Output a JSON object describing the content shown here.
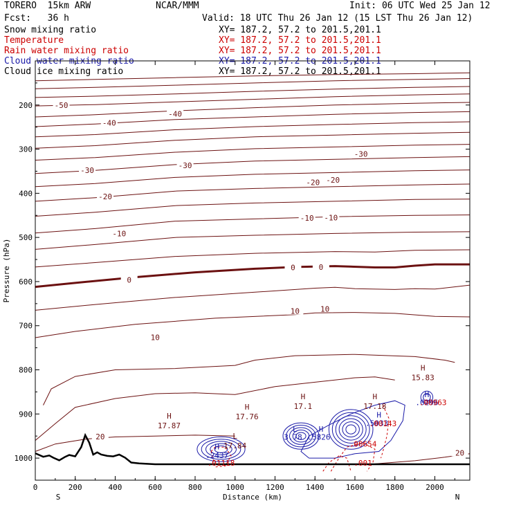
{
  "header": {
    "model": "TORERO  15km ARW",
    "center": "NCAR/MMM",
    "init": "Init: 06 UTC Wed 25 Jan 12",
    "fcst": "Fcst:   36 h",
    "valid": "Valid: 18 UTC Thu 26 Jan 12 (15 LST Thu 26 Jan 12)"
  },
  "fields": [
    {
      "name": "Snow mixing ratio",
      "xy": "XY= 187.2, 57.2 to 201.5,201.1",
      "color": "#000000"
    },
    {
      "name": "Temperature",
      "xy": "XY= 187.2, 57.2 to 201.5,201.1",
      "color": "#cc0000"
    },
    {
      "name": "Rain water mixing ratio",
      "xy": "XY= 187.2, 57.2 to 201.5,201.1",
      "color": "#cc0000"
    },
    {
      "name": "Cloud water mixing ratio",
      "xy": "XY= 187.2, 57.2 to 201.5,201.1",
      "color": "#1a1aa8"
    },
    {
      "name": "Cloud ice mixing ratio",
      "xy": "XY= 187.2, 57.2 to 201.5,201.1",
      "color": "#000000"
    }
  ],
  "colors": {
    "temp": "#6b1010",
    "rain": "#cc0000",
    "cloud": "#1a1aa8",
    "terrain": "#000000",
    "max_label": "#6b1010"
  },
  "chart_data": {
    "type": "cross-section-contour",
    "xlabel": "Distance (km)",
    "ylabel": "Pressure (hPa)",
    "xlim": [
      0,
      2175
    ],
    "ylim": [
      1050,
      100
    ],
    "x_ticks": [
      0,
      200,
      400,
      600,
      800,
      1000,
      1200,
      1400,
      1600,
      1800,
      2000
    ],
    "y_ticks": [
      200,
      300,
      400,
      500,
      600,
      700,
      800,
      900,
      1000
    ],
    "end_labels": {
      "left": "S",
      "right": "N"
    },
    "temperature_contours": [
      {
        "value": -50,
        "pts": [
          [
            0,
            145
          ],
          [
            300,
            142
          ],
          [
            700,
            138
          ],
          [
            1100,
            134
          ],
          [
            1500,
            131
          ],
          [
            1900,
            129
          ],
          [
            2175,
            127
          ]
        ]
      },
      {
        "value": -50,
        "pts": [
          [
            0,
            163
          ],
          [
            300,
            160
          ],
          [
            700,
            155
          ],
          [
            1100,
            150
          ],
          [
            1500,
            145
          ],
          [
            1900,
            142
          ],
          [
            2175,
            140
          ]
        ]
      },
      {
        "value": -50,
        "pts": [
          [
            0,
            183
          ],
          [
            300,
            180
          ],
          [
            700,
            175
          ],
          [
            1100,
            169
          ],
          [
            1500,
            164
          ],
          [
            1900,
            160
          ],
          [
            2175,
            158
          ]
        ]
      },
      {
        "value": -50,
        "pts": [
          [
            0,
            202
          ],
          [
            300,
            199
          ],
          [
            700,
            193
          ],
          [
            1100,
            187
          ],
          [
            1500,
            181
          ],
          [
            1900,
            177
          ],
          [
            2175,
            175
          ]
        ]
      },
      {
        "value": -40,
        "pts": [
          [
            0,
            227
          ],
          [
            300,
            222
          ],
          [
            700,
            213
          ],
          [
            1100,
            206
          ],
          [
            1500,
            200
          ],
          [
            1900,
            196
          ],
          [
            2175,
            194
          ]
        ]
      },
      {
        "value": -40,
        "pts": [
          [
            0,
            249
          ],
          [
            300,
            243
          ],
          [
            700,
            233
          ],
          [
            1100,
            227
          ],
          [
            1500,
            221
          ],
          [
            1900,
            217
          ],
          [
            2175,
            215
          ]
        ]
      },
      {
        "value": -30,
        "pts": [
          [
            0,
            272
          ],
          [
            300,
            267
          ],
          [
            700,
            256
          ],
          [
            1100,
            249
          ],
          [
            1500,
            244
          ],
          [
            1900,
            240
          ],
          [
            2175,
            238
          ]
        ]
      },
      {
        "value": -30,
        "pts": [
          [
            0,
            298
          ],
          [
            300,
            292
          ],
          [
            700,
            280
          ],
          [
            1100,
            272
          ],
          [
            1500,
            268
          ],
          [
            1900,
            264
          ],
          [
            2175,
            262
          ]
        ]
      },
      {
        "value": -30,
        "pts": [
          [
            0,
            325
          ],
          [
            300,
            319
          ],
          [
            700,
            307
          ],
          [
            1100,
            299
          ],
          [
            1500,
            295
          ],
          [
            1900,
            291
          ],
          [
            2175,
            289
          ]
        ]
      },
      {
        "value": -20,
        "pts": [
          [
            0,
            355
          ],
          [
            300,
            348
          ],
          [
            700,
            335
          ],
          [
            1100,
            327
          ],
          [
            1500,
            323
          ],
          [
            1900,
            319
          ],
          [
            2175,
            317
          ]
        ]
      },
      {
        "value": -20,
        "pts": [
          [
            0,
            385
          ],
          [
            300,
            378
          ],
          [
            700,
            364
          ],
          [
            1100,
            357
          ],
          [
            1500,
            353
          ],
          [
            1900,
            349
          ],
          [
            2175,
            347
          ]
        ]
      },
      {
        "value": -20,
        "pts": [
          [
            0,
            418
          ],
          [
            300,
            410
          ],
          [
            700,
            395
          ],
          [
            1100,
            389
          ],
          [
            1500,
            385
          ],
          [
            1900,
            381
          ],
          [
            2175,
            379
          ]
        ]
      },
      {
        "value": -10,
        "pts": [
          [
            0,
            452
          ],
          [
            300,
            443
          ],
          [
            700,
            428
          ],
          [
            1100,
            422
          ],
          [
            1500,
            418
          ],
          [
            1900,
            414
          ],
          [
            2175,
            413
          ]
        ]
      },
      {
        "value": -10,
        "pts": [
          [
            0,
            490
          ],
          [
            300,
            480
          ],
          [
            700,
            463
          ],
          [
            1100,
            458
          ],
          [
            1500,
            453
          ],
          [
            1900,
            450
          ],
          [
            2175,
            449
          ]
        ]
      },
      {
        "value": -10,
        "pts": [
          [
            0,
            527
          ],
          [
            300,
            516
          ],
          [
            700,
            500
          ],
          [
            1100,
            495
          ],
          [
            1500,
            491
          ],
          [
            1900,
            488
          ],
          [
            2175,
            487
          ]
        ]
      },
      {
        "value": 0,
        "pts": [
          [
            0,
            567
          ],
          [
            300,
            557
          ],
          [
            700,
            543
          ],
          [
            1100,
            536
          ],
          [
            1500,
            532
          ],
          [
            1700,
            533
          ],
          [
            1900,
            529
          ],
          [
            2175,
            528
          ]
        ]
      },
      {
        "value": 0,
        "pts": [
          [
            0,
            612
          ],
          [
            200,
            603
          ],
          [
            500,
            590
          ],
          [
            800,
            579
          ],
          [
            1100,
            571
          ],
          [
            1300,
            567
          ],
          [
            1500,
            565
          ],
          [
            1700,
            568
          ],
          [
            1800,
            568
          ],
          [
            1900,
            564
          ],
          [
            2000,
            561
          ],
          [
            2175,
            561
          ]
        ]
      },
      {
        "value": 10,
        "pts": [
          [
            0,
            665
          ],
          [
            300,
            652
          ],
          [
            700,
            636
          ],
          [
            1100,
            624
          ],
          [
            1400,
            615
          ],
          [
            1500,
            613
          ],
          [
            1600,
            616
          ],
          [
            1800,
            618
          ],
          [
            1900,
            616
          ],
          [
            2000,
            617
          ],
          [
            2175,
            608
          ]
        ]
      },
      {
        "value": 10,
        "pts": [
          [
            0,
            727
          ],
          [
            200,
            713
          ],
          [
            500,
            697
          ],
          [
            900,
            683
          ],
          [
            1300,
            675
          ],
          [
            1400,
            671
          ],
          [
            1600,
            670
          ],
          [
            1800,
            672
          ],
          [
            2000,
            679
          ],
          [
            2175,
            680
          ]
        ]
      },
      {
        "value": 10,
        "pts": [
          [
            40,
            880
          ],
          [
            80,
            843
          ],
          [
            200,
            815
          ],
          [
            400,
            800
          ],
          [
            700,
            797
          ],
          [
            1000,
            790
          ],
          [
            1100,
            778
          ],
          [
            1300,
            768
          ],
          [
            1600,
            765
          ],
          [
            1900,
            770
          ],
          [
            2050,
            778
          ],
          [
            2100,
            783
          ]
        ]
      },
      {
        "value": 10,
        "pts": [
          [
            0,
            960
          ],
          [
            100,
            922
          ],
          [
            200,
            885
          ],
          [
            400,
            865
          ],
          [
            600,
            854
          ],
          [
            800,
            852
          ],
          [
            1000,
            856
          ],
          [
            1200,
            838
          ],
          [
            1400,
            828
          ],
          [
            1600,
            818
          ],
          [
            1700,
            816
          ],
          [
            1800,
            823
          ]
        ]
      },
      {
        "value": 20,
        "pts": [
          [
            0,
            985
          ],
          [
            100,
            968
          ],
          [
            250,
            957
          ],
          [
            400,
            952
          ],
          [
            600,
            950
          ],
          [
            800,
            948
          ],
          [
            1000,
            950
          ]
        ]
      },
      {
        "value": 20,
        "pts": [
          [
            1700,
            1013
          ],
          [
            1900,
            1006
          ],
          [
            2050,
            998
          ],
          [
            2175,
            990
          ]
        ]
      }
    ],
    "contour_labels": [
      {
        "text": "-50",
        "x": 130,
        "p": 200
      },
      {
        "text": "-40",
        "x": 370,
        "p": 240
      },
      {
        "text": "-40",
        "x": 700,
        "p": 220
      },
      {
        "text": "-30",
        "x": 260,
        "p": 348
      },
      {
        "text": "-30",
        "x": 750,
        "p": 337
      },
      {
        "text": "-30",
        "x": 1630,
        "p": 311
      },
      {
        "text": "-20",
        "x": 350,
        "p": 407
      },
      {
        "text": "-20",
        "x": 1390,
        "p": 375
      },
      {
        "text": "-20",
        "x": 1490,
        "p": 370
      },
      {
        "text": "-10",
        "x": 420,
        "p": 491
      },
      {
        "text": "-10",
        "x": 1360,
        "p": 456
      },
      {
        "text": "-10",
        "x": 1480,
        "p": 455
      },
      {
        "text": "0",
        "x": 470,
        "p": 596
      },
      {
        "text": "0",
        "x": 1290,
        "p": 568
      },
      {
        "text": "0",
        "x": 1430,
        "p": 567
      },
      {
        "text": "10",
        "x": 1300,
        "p": 667
      },
      {
        "text": "10",
        "x": 1450,
        "p": 662
      },
      {
        "text": "10",
        "x": 600,
        "p": 726
      },
      {
        "text": "20",
        "x": 325,
        "p": 951
      },
      {
        "text": "20",
        "x": 2125,
        "p": 988
      }
    ],
    "maxima": [
      {
        "text": "H",
        "value": "17.87",
        "x": 670,
        "p": 917
      },
      {
        "text": "H",
        "value": "17.76",
        "x": 1060,
        "p": 896
      },
      {
        "text": "H",
        "value": "17.1",
        "x": 1340,
        "p": 873
      },
      {
        "text": "H",
        "value": "17.18",
        "x": 1700,
        "p": 873
      },
      {
        "text": "H",
        "value": "15.83",
        "x": 1940,
        "p": 808
      },
      {
        "text": "L",
        "value": "17.84",
        "x": 1000,
        "p": 962
      }
    ],
    "cloud_labels": [
      {
        "text": "H",
        "x": 910,
        "p": 980
      },
      {
        "text": ".2437",
        "x": 910,
        "p": 1000
      },
      {
        "text": "L",
        "x": 1300,
        "p": 940
      },
      {
        "text": "3.78",
        "x": 1290,
        "p": 958
      },
      {
        "text": "H",
        "x": 1430,
        "p": 940
      },
      {
        "text": ".5826",
        "x": 1420,
        "p": 958
      },
      {
        "text": "H",
        "x": 1720,
        "p": 908
      },
      {
        "text": ".5033",
        "x": 1710,
        "p": 927
      },
      {
        "text": "H",
        "x": 1960,
        "p": 862
      },
      {
        "text": ".0296",
        "x": 1960,
        "p": 880
      }
    ],
    "rain_labels": [
      {
        "text": ".01118",
        "x": 930,
        "p": 1017
      },
      {
        "text": ".00654",
        "x": 1640,
        "p": 974
      },
      {
        "text": ".001",
        "x": 1640,
        "p": 1017
      },
      {
        "text": ".00143",
        "x": 1740,
        "p": 928
      },
      {
        "text": ".00963",
        "x": 1990,
        "p": 880
      }
    ],
    "terrain": [
      [
        0,
        989
      ],
      [
        40,
        997
      ],
      [
        70,
        994
      ],
      [
        90,
        999
      ],
      [
        120,
        1005
      ],
      [
        150,
        997
      ],
      [
        170,
        993
      ],
      [
        200,
        996
      ],
      [
        230,
        975
      ],
      [
        250,
        948
      ],
      [
        270,
        965
      ],
      [
        290,
        992
      ],
      [
        310,
        987
      ],
      [
        330,
        992
      ],
      [
        360,
        995
      ],
      [
        390,
        996
      ],
      [
        420,
        992
      ],
      [
        450,
        999
      ],
      [
        480,
        1010
      ],
      [
        520,
        1012
      ],
      [
        600,
        1014
      ],
      [
        2175,
        1014
      ]
    ]
  }
}
